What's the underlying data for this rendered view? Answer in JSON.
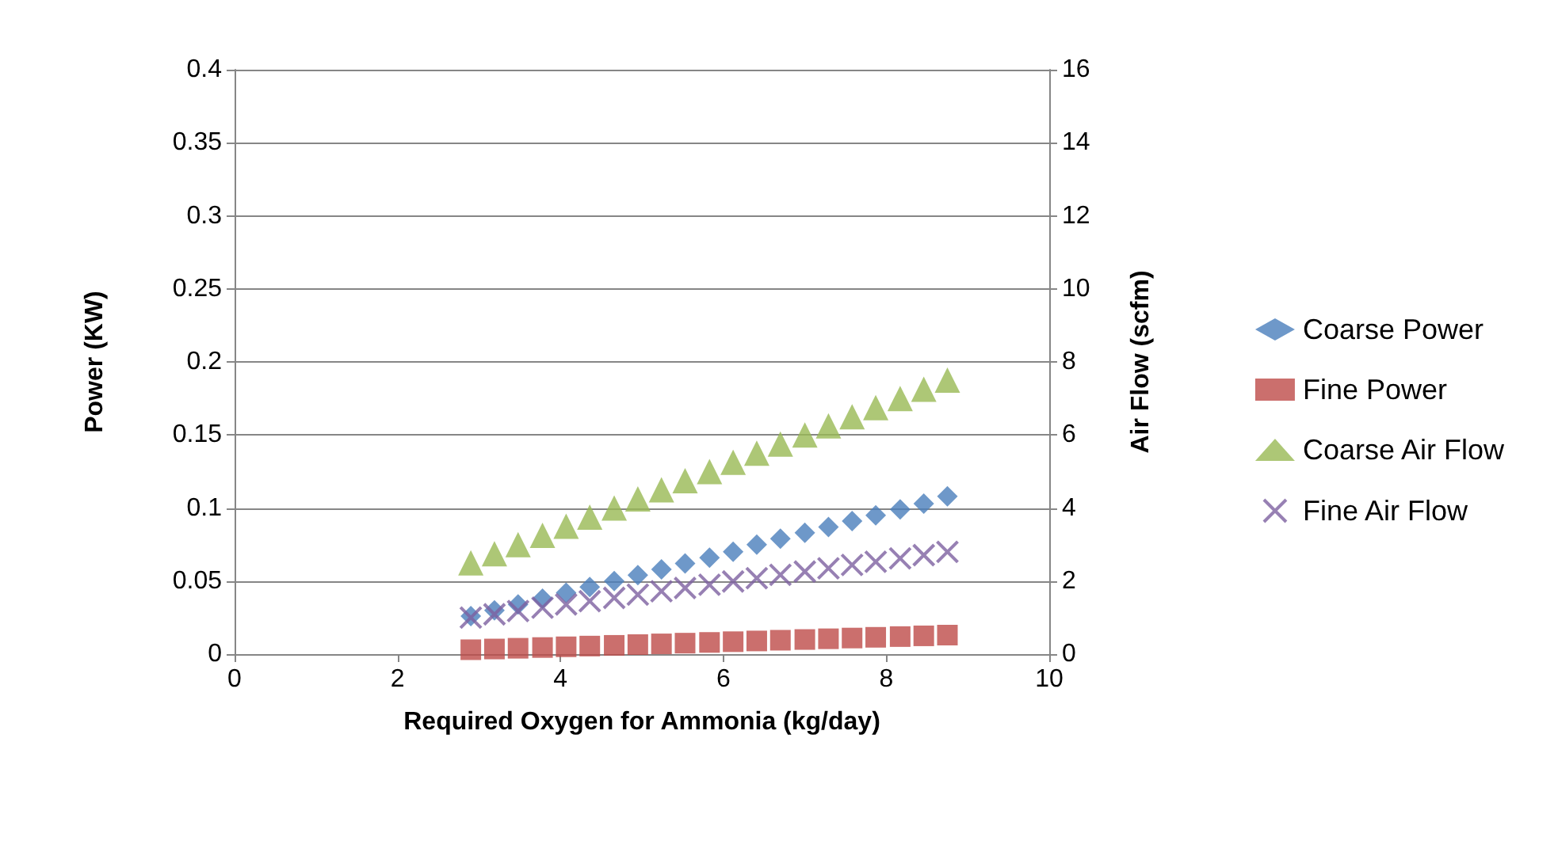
{
  "chart_data": {
    "type": "scatter",
    "xlabel": "Required Oxygen for Ammonia (kg/day)",
    "ylabel": "Power (KW)",
    "y2label": "Air Flow (scfm)",
    "x": [
      2.9,
      3.19,
      3.48,
      3.78,
      4.07,
      4.36,
      4.66,
      4.95,
      5.24,
      5.53,
      5.83,
      6.12,
      6.41,
      6.7,
      7.0,
      7.29,
      7.58,
      7.87,
      8.17,
      8.46,
      8.75
    ],
    "series": [
      {
        "name": "Coarse Power",
        "color": "#4a7ebb",
        "marker": "diamond",
        "values": [
          0.026,
          0.03,
          0.034,
          0.038,
          0.042,
          0.046,
          0.05,
          0.054,
          0.058,
          0.062,
          0.066,
          0.07,
          0.075,
          0.079,
          0.083,
          0.087,
          0.091,
          0.095,
          0.099,
          0.103,
          0.108
        ]
      },
      {
        "name": "Fine Power",
        "color": "#be4b48",
        "marker": "square",
        "values": [
          0.003,
          0.0035,
          0.004,
          0.0045,
          0.005,
          0.0055,
          0.006,
          0.0065,
          0.007,
          0.0075,
          0.008,
          0.0085,
          0.009,
          0.0095,
          0.01,
          0.0105,
          0.011,
          0.0115,
          0.012,
          0.0125,
          0.013
        ]
      },
      {
        "name": "Coarse Air Flow",
        "color": "#98b954",
        "marker": "triangle",
        "axis": "y2",
        "values": [
          2.5,
          2.75,
          3.0,
          3.25,
          3.5,
          3.75,
          4.0,
          4.25,
          4.5,
          4.75,
          5.0,
          5.25,
          5.5,
          5.75,
          6.0,
          6.25,
          6.5,
          6.75,
          7.0,
          7.25,
          7.5
        ]
      },
      {
        "name": "Fine Air Flow",
        "color": "#7d60a0",
        "marker": "cross",
        "axis": "y2",
        "values": [
          1.0,
          1.09,
          1.18,
          1.27,
          1.36,
          1.45,
          1.54,
          1.63,
          1.72,
          1.81,
          1.9,
          1.99,
          2.08,
          2.17,
          2.26,
          2.35,
          2.44,
          2.53,
          2.62,
          2.71,
          2.8
        ]
      }
    ],
    "xlim": [
      0,
      10
    ],
    "xticks": [
      0,
      2,
      4,
      6,
      8,
      10
    ],
    "ylim": [
      0,
      0.4
    ],
    "yticks": [
      0,
      0.05,
      0.1,
      0.15,
      0.2,
      0.25,
      0.3,
      0.35,
      0.4
    ],
    "y2lim": [
      0,
      16
    ],
    "y2ticks": [
      0,
      2,
      4,
      6,
      8,
      10,
      12,
      14,
      16
    ],
    "grid": "y",
    "legend": "right"
  }
}
